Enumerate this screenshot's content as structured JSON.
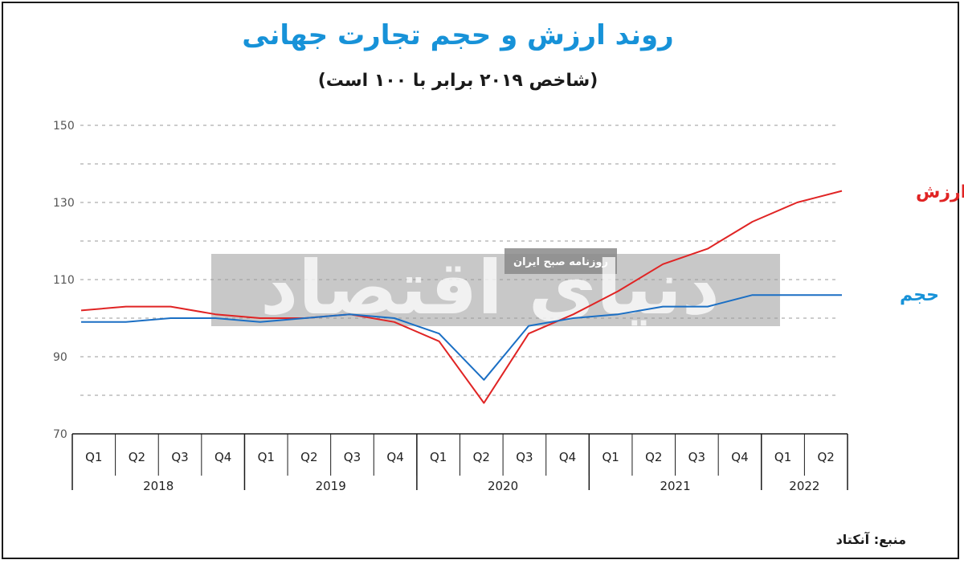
{
  "title": "روند ارزش و حجم تجارت جهانی",
  "subtitle": "(شاخص ۲۰۱۹ برابر با ۱۰۰ است)",
  "source": "منبع: آنکتاد",
  "watermark": {
    "text": "روزنامه صبح ایران",
    "logo": "دنیای اقتصاد"
  },
  "colors": {
    "value": "#e02424",
    "volume": "#1b6fc4",
    "title": "#1792d8",
    "volume_label": "#1792d8"
  },
  "chart_data": {
    "type": "line",
    "x": [
      "Q1",
      "Q2",
      "Q3",
      "Q4",
      "Q1",
      "Q2",
      "Q3",
      "Q4",
      "Q1",
      "Q2",
      "Q3",
      "Q4",
      "Q1",
      "Q2",
      "Q3",
      "Q4",
      "Q1",
      "Q2"
    ],
    "years": [
      {
        "label": "2018",
        "quarters": 4
      },
      {
        "label": "2019",
        "quarters": 4
      },
      {
        "label": "2020",
        "quarters": 4
      },
      {
        "label": "2021",
        "quarters": 4
      },
      {
        "label": "2022",
        "quarters": 2
      }
    ],
    "series": [
      {
        "name": "ارزش",
        "values": [
          102,
          103,
          103,
          101,
          100,
          100,
          101,
          99,
          94,
          78,
          96,
          101,
          107,
          114,
          118,
          125,
          130,
          133
        ]
      },
      {
        "name": "حجم",
        "values": [
          99,
          99,
          100,
          100,
          99,
          100,
          101,
          100,
          96,
          84,
          98,
          100,
          101,
          103,
          103,
          106,
          106,
          106
        ]
      }
    ],
    "ylim": [
      70,
      150
    ],
    "yticks": [
      70,
      90,
      110,
      130,
      150
    ],
    "grid": true,
    "legend": "labels at line ends (right)"
  }
}
